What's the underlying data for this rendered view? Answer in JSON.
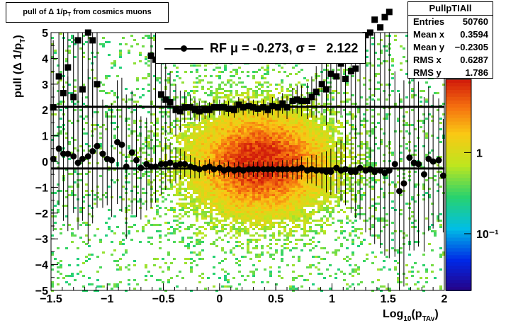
{
  "title": "pull of Δ 1/p",
  "title_sub": "T",
  "title_rest": " from cosmics muons",
  "stats": {
    "name": "PullpTIAll",
    "rows": [
      {
        "label": "Entries",
        "value": "50760"
      },
      {
        "label": "Mean x",
        "value": "0.3594"
      },
      {
        "label": "Mean y",
        "value": "−0.2305"
      },
      {
        "label": "RMS x",
        "value": "0.6287"
      },
      {
        "label": "RMS y",
        "value": "1.786"
      }
    ]
  },
  "legend": {
    "text": "RF μ = -0.273, σ =   2.122"
  },
  "chart_data": {
    "type": "heatmap",
    "xlabel": "Log",
    "xlabel_sub": "10",
    "xlabel_rest": "(p",
    "xlabel_sub2": "TAv",
    "xlabel_end": ")",
    "ylabel": "pull (Δ 1/p",
    "ylabel_sub": "T",
    "ylabel_end": ")",
    "xlim": [
      -1.5,
      2
    ],
    "ylim": [
      -5,
      5
    ],
    "x_ticks": [
      "−1.5",
      "−1",
      "−0.5",
      "0",
      "0.5",
      "1",
      "1.5",
      "2"
    ],
    "x_tick_values": [
      -1.5,
      -1,
      -0.5,
      0,
      0.5,
      1,
      1.5,
      2
    ],
    "y_ticks": [
      "−5",
      "−4",
      "−3",
      "−2",
      "−1",
      "0",
      "1",
      "2",
      "3",
      "4",
      "5"
    ],
    "y_tick_values": [
      -5,
      -4,
      -3,
      -2,
      -1,
      0,
      1,
      2,
      3,
      4,
      5
    ],
    "z_scale": "log",
    "z_ticks": [
      "1",
      "10⁻¹"
    ],
    "z_tick_values": [
      1,
      0.1
    ],
    "z_range": [
      0.02,
      8
    ],
    "mean_line_y": -0.273,
    "sigma_line_y": 2.122,
    "series": [
      {
        "marker": "circle",
        "x": [
          -1.48,
          -1.43,
          -1.39,
          -1.35,
          -1.3,
          -1.26,
          -1.22,
          -1.17,
          -1.13,
          -1.09,
          -1.04,
          -1.0,
          -0.96,
          -0.91,
          -0.87,
          -0.83,
          -0.78,
          -0.74,
          -0.7,
          -0.65,
          -0.61,
          -0.57,
          -0.52,
          -0.48,
          -0.44,
          -0.39,
          -0.35,
          -0.31,
          -0.26,
          -0.22,
          -0.18,
          -0.13,
          -0.09,
          -0.05,
          0.0,
          0.04,
          0.08,
          0.13,
          0.17,
          0.21,
          0.26,
          0.3,
          0.34,
          0.39,
          0.43,
          0.47,
          0.52,
          0.56,
          0.6,
          0.65,
          0.69,
          0.73,
          0.78,
          0.82,
          0.86,
          0.91,
          0.95,
          0.99,
          1.04,
          1.08,
          1.12,
          1.17,
          1.21,
          1.25,
          1.3,
          1.34,
          1.38,
          1.43,
          1.47,
          1.51,
          1.56,
          1.6,
          1.64,
          1.69,
          1.73,
          1.77,
          1.82,
          1.86,
          1.9,
          1.95,
          1.99
        ],
        "y": [
          0.1,
          0.5,
          0.3,
          0.3,
          0.2,
          -0.05,
          0.1,
          0.2,
          0.4,
          0.6,
          0.3,
          0.1,
          0.05,
          0.75,
          0.65,
          -0.2,
          0.35,
          0.05,
          -0.25,
          -0.1,
          -0.2,
          -0.2,
          -0.1,
          -0.1,
          -0.05,
          -0.15,
          -0.1,
          -0.1,
          -0.2,
          -0.25,
          -0.3,
          -0.25,
          -0.2,
          -0.3,
          -0.25,
          -0.35,
          -0.3,
          -0.35,
          -0.3,
          -0.35,
          -0.3,
          -0.3,
          -0.3,
          -0.3,
          -0.3,
          -0.3,
          -0.3,
          -0.3,
          -0.3,
          -0.3,
          -0.3,
          -0.25,
          -0.35,
          -0.3,
          -0.35,
          -0.35,
          -0.4,
          -0.4,
          -0.25,
          -0.35,
          -0.3,
          -0.4,
          -0.4,
          -0.25,
          -0.35,
          -0.3,
          -0.4,
          -0.35,
          -0.45,
          -0.35,
          -0.1,
          -1.15,
          -0.85,
          0.15,
          -0.05,
          -0.1,
          -0.5,
          0.1,
          0.0,
          0.05,
          -0.55
        ],
        "err": [
          2.8,
          2.2,
          2.6,
          3.0,
          2.2,
          2.6,
          2.4,
          3.4,
          2.8,
          2.4,
          2.1,
          1.8,
          2.2,
          2.4,
          2.6,
          2.8,
          2.4,
          2.2,
          2.0,
          1.8,
          1.6,
          1.4,
          1.2,
          1.0,
          0.8,
          0.7,
          0.6,
          0.5,
          0.45,
          0.4,
          0.35,
          0.3,
          0.3,
          0.3,
          0.3,
          0.3,
          0.3,
          0.3,
          0.3,
          0.3,
          0.3,
          0.3,
          0.3,
          0.3,
          0.3,
          0.3,
          0.3,
          0.35,
          0.35,
          0.4,
          0.4,
          0.45,
          0.5,
          0.55,
          0.6,
          0.7,
          0.8,
          0.9,
          1.0,
          1.2,
          1.4,
          1.6,
          1.8,
          2.0,
          2.4,
          2.6,
          2.8,
          3.0,
          3.2,
          3.4,
          3.6,
          3.8,
          4.0,
          3.6,
          3.4,
          3.2,
          3.0,
          2.8,
          2.6,
          2.4,
          2.2
        ]
      },
      {
        "marker": "square",
        "x": [
          -1.48,
          -1.43,
          -1.39,
          -1.35,
          -1.3,
          -1.26,
          -1.22,
          -1.17,
          -1.13,
          -1.09,
          -0.61,
          -0.57,
          -0.52,
          -0.48,
          -0.44,
          -0.39,
          -0.35,
          -0.31,
          -0.26,
          -0.22,
          -0.18,
          -0.13,
          -0.09,
          -0.05,
          0.0,
          0.04,
          0.08,
          0.13,
          0.17,
          0.21,
          0.26,
          0.3,
          0.34,
          0.39,
          0.43,
          0.47,
          0.52,
          0.56,
          0.6,
          0.65,
          0.69,
          0.73,
          0.78,
          0.82,
          0.86,
          0.91,
          0.95,
          0.99,
          1.04,
          1.08,
          1.12,
          1.17,
          1.21,
          1.25,
          1.3,
          1.34,
          1.38,
          1.43,
          1.47,
          1.51
        ],
        "y": [
          2.1,
          3.3,
          2.65,
          3.65,
          2.5,
          4.7,
          2.8,
          5.0,
          4.7,
          3.0,
          4.1,
          3.95,
          2.6,
          2.4,
          2.3,
          2.0,
          1.95,
          2.1,
          2.1,
          2.0,
          1.95,
          2.0,
          2.0,
          2.1,
          2.1,
          2.1,
          2.05,
          2.0,
          2.2,
          2.1,
          2.15,
          2.1,
          2.05,
          2.1,
          2.0,
          2.15,
          2.1,
          2.25,
          2.1,
          2.35,
          2.4,
          2.35,
          2.35,
          2.5,
          2.7,
          3.0,
          2.8,
          3.4,
          3.3,
          3.8,
          3.2,
          3.5,
          3.6,
          4.4,
          4.9,
          5.0,
          5.5,
          5.2,
          5.6,
          5.8
        ],
        "err": [
          2.6,
          3.0,
          2.4,
          3.0,
          2.4,
          3.2,
          2.6,
          3.4,
          3.0,
          2.4,
          2.6,
          2.8,
          1.8,
          1.4,
          1.2,
          1.0,
          0.8,
          0.6,
          0.5,
          0.45,
          0.4,
          0.35,
          0.3,
          0.3,
          0.3,
          0.3,
          0.3,
          0.3,
          0.3,
          0.3,
          0.3,
          0.3,
          0.3,
          0.3,
          0.3,
          0.35,
          0.4,
          0.4,
          0.45,
          0.5,
          0.55,
          0.6,
          0.7,
          0.8,
          1.0,
          1.2,
          1.4,
          1.6,
          1.8,
          2.0,
          2.2,
          2.4,
          2.6,
          2.8,
          3.0,
          3.0,
          3.0,
          3.0,
          3.0,
          3.0
        ]
      }
    ]
  }
}
